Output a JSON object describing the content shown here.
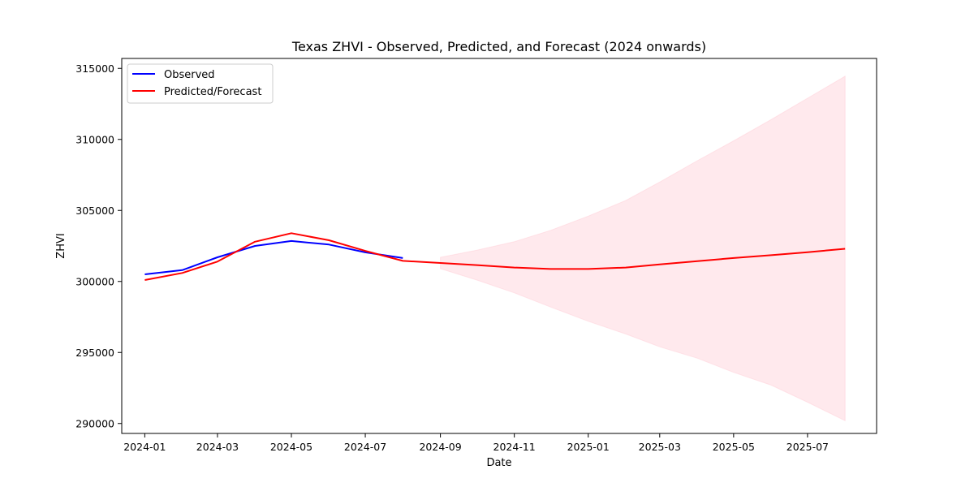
{
  "chart_data": {
    "type": "line",
    "title": "Texas ZHVI - Observed, Predicted, and Forecast (2024 onwards)",
    "xlabel": "Date",
    "ylabel": "ZHVI",
    "xlim": [
      "2023-12-13",
      "2025-08-27"
    ],
    "ylim": [
      289300,
      315700
    ],
    "x_ticks": [
      "2024-01",
      "2024-03",
      "2024-05",
      "2024-07",
      "2024-09",
      "2024-11",
      "2025-01",
      "2025-03",
      "2025-05",
      "2025-07"
    ],
    "y_ticks": [
      290000,
      295000,
      300000,
      305000,
      310000,
      315000
    ],
    "grid": false,
    "legend_position": "top-left",
    "series": [
      {
        "name": "Observed",
        "color": "#0000ff",
        "x": [
          "2024-01-01",
          "2024-02-01",
          "2024-03-01",
          "2024-04-01",
          "2024-05-01",
          "2024-06-01",
          "2024-07-01",
          "2024-08-01"
        ],
        "values": [
          300500,
          300800,
          301700,
          302500,
          302850,
          302600,
          302050,
          301650
        ]
      },
      {
        "name": "Predicted/Forecast",
        "color": "#ff0000",
        "x": [
          "2024-01-01",
          "2024-02-01",
          "2024-03-01",
          "2024-04-01",
          "2024-05-01",
          "2024-06-01",
          "2024-07-01",
          "2024-08-01",
          "2024-09-01",
          "2024-10-01",
          "2024-11-01",
          "2024-12-01",
          "2025-01-01",
          "2025-02-01",
          "2025-03-01",
          "2025-04-01",
          "2025-05-01",
          "2025-06-01",
          "2025-07-01",
          "2025-08-01"
        ],
        "values": [
          300100,
          300600,
          301400,
          302800,
          303400,
          302900,
          302150,
          301450,
          301300,
          301150,
          300980,
          300880,
          300880,
          300980,
          301200,
          301430,
          301650,
          301850,
          302060,
          302300
        ]
      }
    ],
    "confidence_band": {
      "color": "#ffc0cb",
      "x": [
        "2024-09-01",
        "2024-10-01",
        "2024-11-01",
        "2024-12-01",
        "2025-01-01",
        "2025-02-01",
        "2025-03-01",
        "2025-04-01",
        "2025-05-01",
        "2025-06-01",
        "2025-07-01",
        "2025-08-01"
      ],
      "upper": [
        301700,
        302200,
        302800,
        303600,
        304600,
        305700,
        307000,
        308500,
        309900,
        311400,
        312900,
        314450
      ],
      "lower": [
        300900,
        300100,
        299200,
        298200,
        297200,
        296300,
        295400,
        294600,
        293600,
        292700,
        291500,
        290200
      ]
    }
  }
}
